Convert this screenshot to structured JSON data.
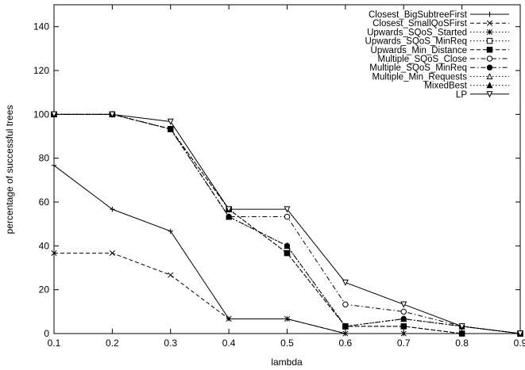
{
  "chart_data": {
    "type": "line",
    "title": "",
    "xlabel": "lambda",
    "ylabel": "percentage of successful trees",
    "xlim": [
      0.1,
      0.9
    ],
    "ylim": [
      0,
      150
    ],
    "x_ticks": [
      "0.1",
      "0.2",
      "0.3",
      "0.4",
      "0.5",
      "0.6",
      "0.7",
      "0.8",
      "0.9"
    ],
    "y_ticks": [
      "0",
      "20",
      "40",
      "60",
      "80",
      "100",
      "120",
      "140"
    ],
    "x": [
      0.1,
      0.2,
      0.3,
      0.4,
      0.5,
      0.6,
      0.7,
      0.8,
      0.9
    ],
    "grid": false,
    "legend_position": "top-right",
    "series": [
      {
        "name": "Closest_BigSubtreeFirst",
        "marker": "plus",
        "dash": "solid",
        "values": [
          76.7,
          56.7,
          46.7,
          6.7,
          6.7,
          0,
          0,
          0,
          0
        ]
      },
      {
        "name": "Closest_SmallQoSFirst",
        "marker": "cross",
        "dash": "dashed",
        "values": [
          36.7,
          36.7,
          26.7,
          6.7,
          6.7,
          0,
          0,
          0,
          0
        ]
      },
      {
        "name": "Upwards_SQoS_Started",
        "marker": "star",
        "dash": "dotted",
        "values": [
          100,
          100,
          93.3,
          56.7,
          36.7,
          3.3,
          3.3,
          0,
          0
        ]
      },
      {
        "name": "Upwards_SQoS_MinReq",
        "marker": "open-square",
        "dash": "dotted",
        "values": [
          100,
          100,
          93.3,
          56.7,
          36.7,
          3.3,
          3.3,
          0,
          0
        ]
      },
      {
        "name": "Upwards_Min_Distance",
        "marker": "filled-square",
        "dash": "dashed",
        "values": [
          100,
          100,
          93.3,
          56.7,
          36.7,
          3.3,
          3.3,
          0,
          0
        ]
      },
      {
        "name": "Multiple_SQoS_Close",
        "marker": "open-circle",
        "dash": "dash-dot",
        "values": [
          100,
          100,
          93.3,
          53.3,
          53.3,
          13.3,
          10,
          3.3,
          0
        ]
      },
      {
        "name": "Multiple_SQoS_MinReq",
        "marker": "filled-circle",
        "dash": "dash-dot",
        "values": [
          100,
          100,
          93.3,
          53.3,
          40,
          3.3,
          6.7,
          3.3,
          0
        ]
      },
      {
        "name": "Multiple_Min_Requests",
        "marker": "open-triangle",
        "dash": "dotted",
        "values": [
          100,
          100,
          93.3,
          53.3,
          40,
          3.3,
          6.7,
          3.3,
          0
        ]
      },
      {
        "name": "MixedBest",
        "marker": "filled-triangle",
        "dash": "dotted",
        "values": [
          100,
          100,
          93.3,
          53.3,
          40,
          3.3,
          6.7,
          3.3,
          0
        ]
      },
      {
        "name": "LP",
        "marker": "open-down-triangle",
        "dash": "solid",
        "values": [
          100,
          100,
          96.7,
          56.7,
          56.7,
          23.3,
          13.3,
          3.3,
          0
        ]
      }
    ]
  }
}
